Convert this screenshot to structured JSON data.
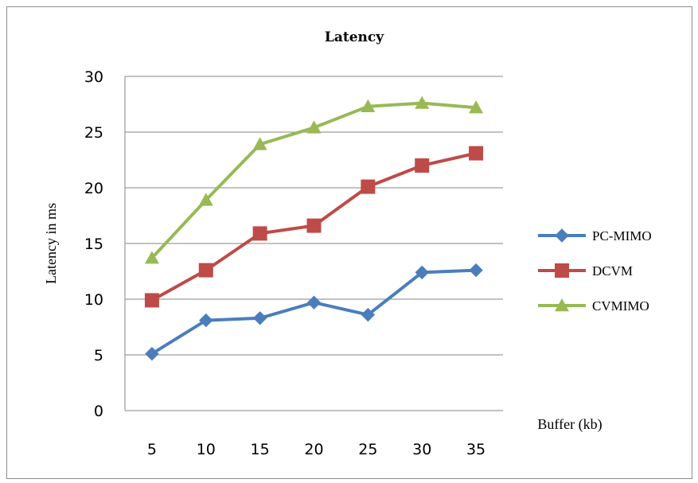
{
  "chart_data": {
    "type": "line",
    "title": "Latency",
    "xlabel": "Buffer (kb)",
    "ylabel": "Latency in ms",
    "categories": [
      "5",
      "10",
      "15",
      "20",
      "25",
      "30",
      "35"
    ],
    "ylim": [
      0,
      30
    ],
    "yticks": [
      "0",
      "5",
      "10",
      "15",
      "20",
      "25",
      "30"
    ],
    "grid": true,
    "legend_position": "right",
    "series": [
      {
        "name": "PC-MIMO",
        "values": [
          5.1,
          8.1,
          8.3,
          9.7,
          8.6,
          12.4,
          12.6
        ],
        "color": "#4a7ebb",
        "marker": "diamond"
      },
      {
        "name": "DCVM",
        "values": [
          9.9,
          12.6,
          15.9,
          16.6,
          20.1,
          22.0,
          23.1
        ],
        "color": "#be4b48",
        "marker": "square"
      },
      {
        "name": "CVMIMO",
        "values": [
          13.7,
          18.9,
          23.9,
          25.4,
          27.3,
          27.6,
          27.2
        ],
        "color": "#98b954",
        "marker": "triangle"
      }
    ]
  }
}
